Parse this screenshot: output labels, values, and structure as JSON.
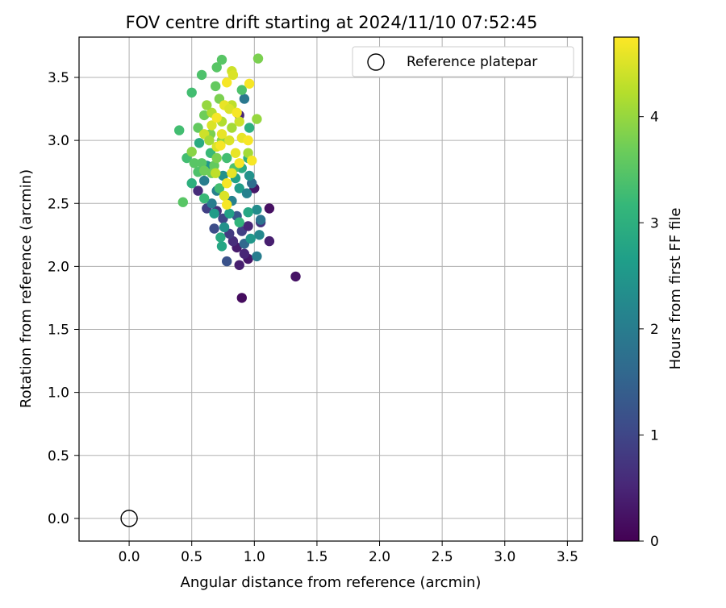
{
  "chart_data": {
    "type": "scatter",
    "title": "FOV centre drift starting at 2024/11/10 07:52:45",
    "xlabel": "Angular distance from reference (arcmin)",
    "ylabel": "Rotation from reference (arcmin)",
    "xlim": [
      -0.4,
      3.62
    ],
    "ylim": [
      -0.18,
      3.82
    ],
    "xticks": [
      "0.0",
      "0.5",
      "1.0",
      "1.5",
      "2.0",
      "2.5",
      "3.0",
      "3.5"
    ],
    "yticks": [
      "0.0",
      "0.5",
      "1.0",
      "1.5",
      "2.0",
      "2.5",
      "3.0",
      "3.5"
    ],
    "grid": true,
    "legend": {
      "placement": "top-right",
      "entries": [
        "Reference platepar"
      ]
    },
    "reference_point": {
      "x": 0.0,
      "y": 0.0
    },
    "colorbar": {
      "label": "Hours from first FF file",
      "colormap": "viridis",
      "range": [
        0,
        4.75
      ],
      "ticks": [
        "0",
        "1",
        "2",
        "3",
        "4"
      ]
    },
    "series": [
      {
        "points": [
          [
            0.9,
            1.75,
            0.15
          ],
          [
            1.33,
            1.92,
            0.25
          ],
          [
            0.88,
            2.01,
            0.4
          ],
          [
            0.78,
            2.04,
            1.2
          ],
          [
            0.95,
            2.06,
            0.3
          ],
          [
            0.86,
            2.15,
            0.35
          ],
          [
            0.92,
            2.1,
            0.5
          ],
          [
            0.83,
            2.2,
            0.6
          ],
          [
            1.12,
            2.2,
            0.4
          ],
          [
            0.8,
            2.26,
            0.8
          ],
          [
            0.9,
            2.28,
            0.9
          ],
          [
            0.95,
            2.32,
            0.5
          ],
          [
            1.05,
            2.35,
            0.7
          ],
          [
            1.12,
            2.46,
            0.2
          ],
          [
            1.0,
            2.62,
            0.3
          ],
          [
            0.88,
            3.2,
            0.5
          ],
          [
            0.75,
            2.38,
            1.0
          ],
          [
            0.7,
            2.44,
            0.7
          ],
          [
            0.62,
            2.46,
            0.9
          ],
          [
            0.55,
            2.6,
            0.6
          ],
          [
            0.68,
            2.3,
            1.1
          ],
          [
            0.86,
            2.4,
            1.3
          ],
          [
            0.92,
            2.18,
            1.6
          ],
          [
            1.02,
            2.08,
            2.0
          ],
          [
            1.04,
            2.25,
            2.2
          ],
          [
            0.97,
            2.22,
            2.5
          ],
          [
            1.05,
            2.37,
            1.8
          ],
          [
            0.98,
            2.66,
            1.7
          ],
          [
            1.02,
            2.45,
            2.3
          ],
          [
            0.92,
            3.33,
            1.9
          ],
          [
            0.73,
            2.23,
            2.9
          ],
          [
            0.74,
            2.16,
            2.8
          ],
          [
            0.76,
            2.31,
            2.4
          ],
          [
            0.66,
            2.5,
            2.0
          ],
          [
            0.7,
            2.6,
            2.1
          ],
          [
            0.6,
            2.68,
            2.0
          ],
          [
            0.82,
            2.52,
            2.1
          ],
          [
            0.88,
            2.62,
            2.6
          ],
          [
            0.94,
            2.58,
            2.1
          ],
          [
            0.96,
            2.72,
            2.4
          ],
          [
            0.62,
            2.8,
            2.5
          ],
          [
            0.75,
            2.72,
            2.4
          ],
          [
            0.85,
            2.7,
            2.7
          ],
          [
            0.88,
            2.35,
            3.1
          ],
          [
            0.95,
            2.43,
            2.8
          ],
          [
            0.8,
            2.42,
            2.7
          ],
          [
            0.68,
            2.42,
            2.6
          ],
          [
            0.5,
            2.66,
            3.0
          ],
          [
            0.56,
            2.98,
            2.9
          ],
          [
            0.9,
            2.78,
            2.9
          ],
          [
            0.95,
            2.86,
            3.0
          ],
          [
            0.65,
            2.9,
            3.2
          ],
          [
            0.6,
            2.54,
            3.2
          ],
          [
            0.78,
            2.86,
            3.3
          ],
          [
            0.55,
            2.75,
            3.4
          ],
          [
            0.72,
            2.62,
            3.3
          ],
          [
            0.58,
            2.82,
            3.5
          ],
          [
            0.68,
            2.8,
            3.6
          ],
          [
            0.84,
            2.78,
            3.4
          ],
          [
            0.96,
            3.1,
            3.0
          ],
          [
            0.46,
            2.86,
            3.3
          ],
          [
            0.52,
            2.82,
            3.5
          ],
          [
            0.43,
            2.51,
            3.5
          ],
          [
            0.4,
            3.08,
            3.3
          ],
          [
            0.5,
            3.38,
            3.3
          ],
          [
            0.58,
            3.52,
            3.4
          ],
          [
            0.6,
            2.76,
            3.7
          ],
          [
            0.66,
            2.74,
            3.7
          ],
          [
            0.74,
            3.0,
            3.9
          ],
          [
            0.7,
            2.86,
            3.8
          ],
          [
            0.5,
            2.91,
            3.9
          ],
          [
            0.55,
            3.1,
            3.6
          ],
          [
            0.6,
            3.2,
            3.7
          ],
          [
            0.65,
            3.05,
            3.8
          ],
          [
            0.69,
            3.43,
            3.6
          ],
          [
            0.7,
            3.58,
            3.5
          ],
          [
            0.74,
            3.64,
            3.5
          ],
          [
            0.9,
            3.4,
            3.4
          ],
          [
            1.03,
            3.65,
            3.8
          ],
          [
            1.02,
            3.17,
            4.0
          ],
          [
            0.95,
            2.9,
            4.1
          ],
          [
            0.82,
            3.1,
            4.1
          ],
          [
            0.66,
            3.22,
            4.2
          ],
          [
            0.62,
            3.28,
            4.0
          ],
          [
            0.72,
            3.33,
            3.8
          ],
          [
            0.6,
            3.05,
            4.4
          ],
          [
            0.66,
            3.12,
            4.5
          ],
          [
            0.74,
            3.15,
            4.2
          ],
          [
            0.82,
            3.28,
            4.3
          ],
          [
            0.88,
            3.15,
            4.4
          ],
          [
            0.7,
            2.95,
            4.5
          ],
          [
            0.8,
            3.0,
            4.5
          ],
          [
            0.9,
            3.02,
            4.6
          ],
          [
            0.95,
            3.0,
            4.7
          ],
          [
            0.76,
            3.28,
            4.6
          ],
          [
            0.82,
            3.55,
            4.4
          ],
          [
            0.83,
            3.52,
            4.5
          ],
          [
            0.78,
            3.46,
            4.7
          ],
          [
            0.96,
            3.45,
            4.7
          ],
          [
            0.7,
            3.18,
            4.7
          ],
          [
            0.74,
            3.05,
            4.6
          ],
          [
            0.8,
            3.25,
            4.5
          ],
          [
            0.86,
            3.22,
            4.7
          ],
          [
            0.98,
            2.84,
            4.7
          ],
          [
            0.85,
            2.9,
            4.6
          ],
          [
            0.88,
            2.82,
            4.7
          ],
          [
            0.73,
            2.96,
            4.7
          ],
          [
            0.76,
            2.56,
            4.5
          ],
          [
            0.78,
            2.49,
            4.7
          ],
          [
            0.78,
            2.66,
            4.7
          ],
          [
            0.82,
            2.74,
            4.6
          ],
          [
            0.69,
            2.74,
            4.3
          ],
          [
            0.64,
            3.0,
            4.1
          ]
        ]
      }
    ]
  }
}
